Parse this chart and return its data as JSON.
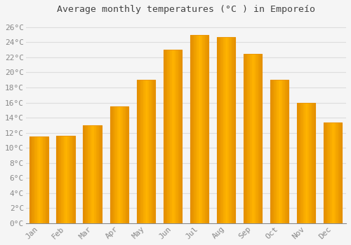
{
  "title": "Average monthly temperatures (°C ) in Emporeío",
  "months": [
    "Jan",
    "Feb",
    "Mar",
    "Apr",
    "May",
    "Jun",
    "Jul",
    "Aug",
    "Sep",
    "Oct",
    "Nov",
    "Dec"
  ],
  "values": [
    11.5,
    11.6,
    13.0,
    15.5,
    19.0,
    23.0,
    25.0,
    24.7,
    22.5,
    19.0,
    16.0,
    13.4
  ],
  "bar_color": "#FFAA00",
  "bar_edge_color": "#E89000",
  "background_color": "#f5f5f5",
  "plot_bg_color": "#f5f5f5",
  "grid_color": "#dddddd",
  "ylim": [
    0,
    27
  ],
  "yticks": [
    0,
    2,
    4,
    6,
    8,
    10,
    12,
    14,
    16,
    18,
    20,
    22,
    24,
    26
  ],
  "title_fontsize": 9.5,
  "tick_fontsize": 8,
  "tick_label_color": "#888888",
  "title_color": "#444444"
}
